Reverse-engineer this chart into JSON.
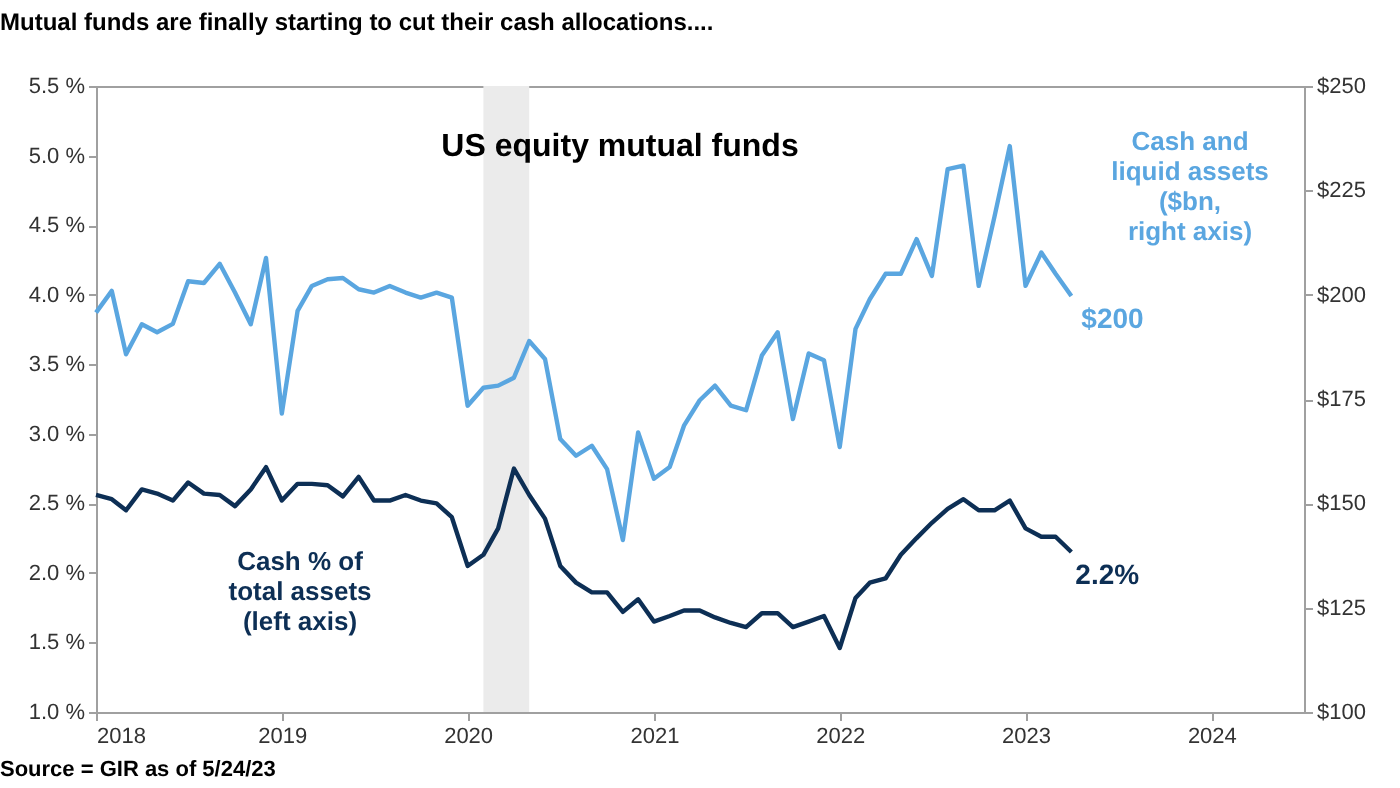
{
  "chart_data": {
    "type": "line",
    "title": "Mutual funds are finally starting to cut their cash allocations....",
    "subtitle": "US equity mutual funds",
    "annotations": [
      "Source = GIR as of 5/24/23"
    ],
    "x": [
      "2018-01",
      "2018-02",
      "2018-03",
      "2018-04",
      "2018-05",
      "2018-06",
      "2018-07",
      "2018-08",
      "2018-09",
      "2018-10",
      "2018-11",
      "2018-12",
      "2019-01",
      "2019-02",
      "2019-03",
      "2019-04",
      "2019-05",
      "2019-06",
      "2019-07",
      "2019-08",
      "2019-09",
      "2019-10",
      "2019-11",
      "2019-12",
      "2020-01",
      "2020-02",
      "2020-03",
      "2020-04",
      "2020-05",
      "2020-06",
      "2020-07",
      "2020-08",
      "2020-09",
      "2020-10",
      "2020-11",
      "2020-12",
      "2021-01",
      "2021-02",
      "2021-03",
      "2021-04",
      "2021-05",
      "2021-06",
      "2021-07",
      "2021-08",
      "2021-09",
      "2021-10",
      "2021-11",
      "2021-12",
      "2022-01",
      "2022-02",
      "2022-03",
      "2022-04",
      "2022-05",
      "2022-06",
      "2022-07",
      "2022-08",
      "2022-09",
      "2022-10",
      "2022-11",
      "2022-12",
      "2023-01",
      "2023-02",
      "2023-03",
      "2023-04"
    ],
    "series": [
      {
        "name": "Cash % of\ntotal assets\n(left axis)",
        "color": "#0d2f55",
        "values": [
          2.56,
          2.53,
          2.45,
          2.6,
          2.57,
          2.52,
          2.65,
          2.57,
          2.56,
          2.48,
          2.6,
          2.76,
          2.52,
          2.64,
          2.64,
          2.63,
          2.55,
          2.69,
          2.52,
          2.52,
          2.56,
          2.52,
          2.5,
          2.4,
          2.05,
          2.13,
          2.32,
          2.75,
          2.56,
          2.39,
          2.05,
          1.93,
          1.86,
          1.86,
          1.72,
          1.81,
          1.65,
          1.69,
          1.73,
          1.73,
          1.68,
          1.64,
          1.61,
          1.71,
          1.71,
          1.61,
          1.65,
          1.69,
          1.46,
          1.82,
          1.93,
          1.96,
          2.13,
          2.25,
          2.36,
          2.46,
          2.53,
          2.45,
          2.45,
          2.52,
          2.32,
          2.26,
          2.26,
          2.15
        ],
        "value_labels": [
          null,
          null,
          null,
          null,
          null,
          null,
          null,
          null,
          null,
          null,
          null,
          null,
          null,
          null,
          null,
          null,
          null,
          null,
          null,
          null,
          null,
          null,
          null,
          null,
          null,
          null,
          null,
          null,
          null,
          null,
          null,
          null,
          null,
          null,
          null,
          null,
          null,
          null,
          null,
          null,
          null,
          null,
          null,
          null,
          null,
          null,
          null,
          null,
          null,
          null,
          null,
          null,
          null,
          null,
          null,
          null,
          null,
          null,
          null,
          null,
          null,
          null,
          null,
          "2.2%"
        ]
      },
      {
        "name": "Cash and\nliquid assets\n($bn,\nright axis)",
        "color": "#5aa6e0",
        "axis": "y2",
        "values": [
          195.7,
          200.9,
          185.7,
          192.9,
          191.0,
          193.0,
          203.2,
          202.8,
          207.4,
          200.5,
          192.9,
          208.8,
          171.5,
          196.1,
          202.1,
          203.7,
          204.0,
          201.3,
          200.5,
          202.1,
          200.5,
          199.3,
          200.5,
          199.3,
          173.4,
          177.7,
          178.2,
          180.1,
          188.9,
          184.6,
          165.4,
          161.4,
          163.8,
          158.2,
          141.2,
          167.0,
          155.9,
          158.7,
          168.6,
          174.7,
          178.2,
          173.4,
          172.3,
          185.4,
          191.0,
          170.2,
          185.9,
          184.3,
          163.5,
          191.8,
          198.9,
          205.0,
          205.0,
          213.3,
          204.5,
          230.1,
          230.9,
          202.1,
          218.7,
          235.6,
          202.1,
          210.1,
          205.0,
          199.7
        ],
        "value_labels": [
          null,
          null,
          null,
          null,
          null,
          null,
          null,
          null,
          null,
          null,
          null,
          null,
          null,
          null,
          null,
          null,
          null,
          null,
          null,
          null,
          null,
          null,
          null,
          null,
          null,
          null,
          null,
          null,
          null,
          null,
          null,
          null,
          null,
          null,
          null,
          null,
          null,
          null,
          null,
          null,
          null,
          null,
          null,
          null,
          null,
          null,
          null,
          null,
          null,
          null,
          null,
          null,
          null,
          null,
          null,
          null,
          null,
          null,
          null,
          null,
          null,
          null,
          null,
          "$200"
        ]
      }
    ],
    "xlim": [
      "2018-01",
      "2024-07"
    ],
    "xticks": [
      "2018",
      "2019",
      "2020",
      "2021",
      "2022",
      "2023",
      "2024"
    ],
    "ylim": [
      1.0,
      5.5
    ],
    "yticks": [
      {
        "value": 1.0,
        "label": "1.0 %"
      },
      {
        "value": 1.5,
        "label": "1.5 %"
      },
      {
        "value": 2.0,
        "label": "2.0 %"
      },
      {
        "value": 2.5,
        "label": "2.5 %"
      },
      {
        "value": 3.0,
        "label": "3.0 %"
      },
      {
        "value": 3.5,
        "label": "3.5 %"
      },
      {
        "value": 4.0,
        "label": "4.0 %"
      },
      {
        "value": 4.5,
        "label": "4.5 %"
      },
      {
        "value": 5.0,
        "label": "5.0 %"
      },
      {
        "value": 5.5,
        "label": "5.5 %"
      }
    ],
    "y2lim": [
      100,
      250
    ],
    "y2ticks": [
      {
        "value": 100,
        "label": "$100"
      },
      {
        "value": 125,
        "label": "$125"
      },
      {
        "value": 150,
        "label": "$150"
      },
      {
        "value": 175,
        "label": "$175"
      },
      {
        "value": 200,
        "label": "$200"
      },
      {
        "value": 225,
        "label": "$225"
      },
      {
        "value": 250,
        "label": "$250"
      }
    ],
    "bands": [
      {
        "axis": "x",
        "from": "2020-02",
        "to": "2020-05",
        "color": "#ebebeb"
      }
    ],
    "marker": "none",
    "line_style": "solid"
  }
}
